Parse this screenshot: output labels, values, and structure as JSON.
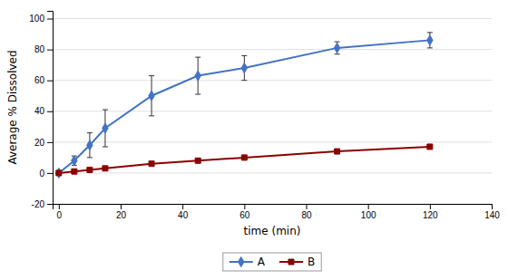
{
  "chart_data": {
    "type": "line",
    "xlabel": "time (min)",
    "ylabel": "Average % Dissolved",
    "x": [
      0,
      5,
      10,
      15,
      30,
      45,
      60,
      90,
      120
    ],
    "series": [
      {
        "name": "A",
        "color": "#4472C4",
        "marker": "diamond",
        "values": [
          0,
          8,
          18,
          29,
          50,
          63,
          68,
          81,
          86
        ],
        "errors": [
          0,
          3,
          8,
          12,
          13,
          12,
          8,
          4,
          5
        ]
      },
      {
        "name": "B",
        "color": "#8B0000",
        "marker": "square",
        "values": [
          0,
          1,
          2,
          3,
          6,
          8,
          10,
          14,
          17
        ],
        "errors": [
          0,
          0.5,
          0.5,
          0.5,
          0.5,
          0.5,
          0.5,
          0.5,
          0.5
        ]
      }
    ],
    "xlim": [
      -2,
      140
    ],
    "ylim": [
      -20,
      105
    ],
    "xticks": [
      0,
      20,
      40,
      60,
      80,
      100,
      120,
      140
    ],
    "yticks": [
      -20,
      0,
      20,
      40,
      60,
      80,
      100
    ],
    "grid": true,
    "legend": "bottom"
  }
}
